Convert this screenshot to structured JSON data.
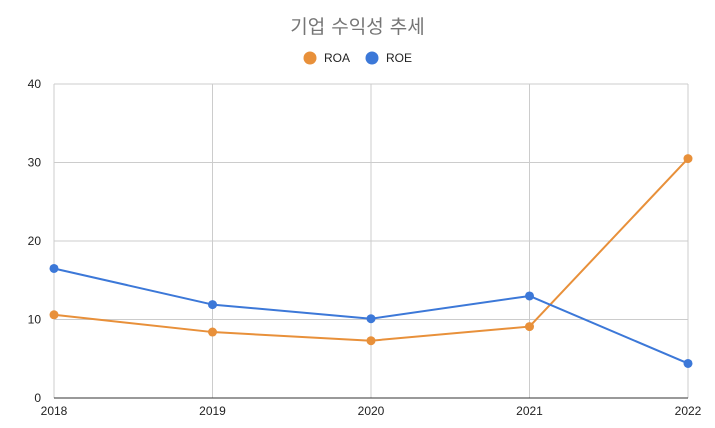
{
  "chart_data": {
    "type": "line",
    "title": "기업 수익성 추세",
    "categories": [
      "2018",
      "2019",
      "2020",
      "2021",
      "2022"
    ],
    "series": [
      {
        "name": "ROA",
        "color": "#e8903a",
        "values": [
          10.6,
          8.4,
          7.3,
          9.1,
          30.5
        ]
      },
      {
        "name": "ROE",
        "color": "#3c78d8",
        "values": [
          16.5,
          11.9,
          10.1,
          13.0,
          4.4
        ]
      }
    ],
    "ylim": [
      0,
      40
    ],
    "yticks": [
      "0",
      "10",
      "20",
      "30",
      "40"
    ],
    "grid": true,
    "legend_position": "top-center"
  }
}
